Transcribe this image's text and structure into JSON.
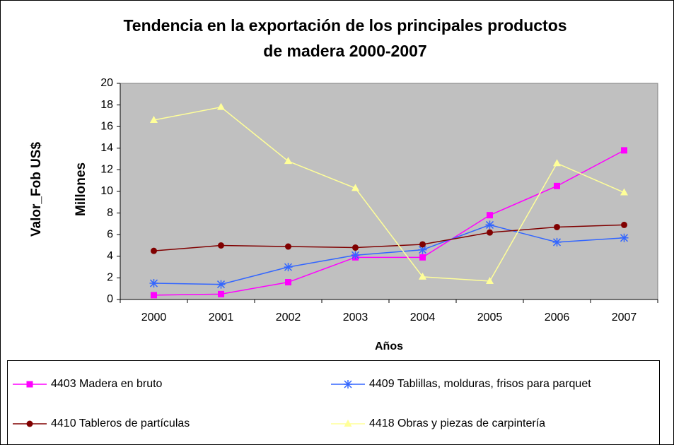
{
  "chart_data": {
    "type": "line",
    "title": [
      "Tendencia en la exportación de los principales productos",
      "de madera 2000-2007"
    ],
    "y_label": "Valor_Fob US$",
    "y_unit_label": "Millones",
    "x_label": "Años",
    "categories": [
      "2000",
      "2001",
      "2002",
      "2003",
      "2004",
      "2005",
      "2006",
      "2007"
    ],
    "series": [
      {
        "name": "4403 Madera en bruto",
        "color": "#ff00ff",
        "marker": "square",
        "values": [
          0.4,
          0.5,
          1.6,
          3.9,
          3.9,
          7.8,
          10.5,
          13.8
        ]
      },
      {
        "name": "4409 Tablillas, molduras, frisos para parquet",
        "color": "#3366ff",
        "marker": "asterisk",
        "values": [
          1.5,
          1.4,
          3.0,
          4.1,
          4.6,
          6.9,
          5.3,
          5.7
        ]
      },
      {
        "name": "4410 Tableros de partículas",
        "color": "#800000",
        "marker": "circle",
        "values": [
          4.5,
          5.0,
          4.9,
          4.8,
          5.1,
          6.2,
          6.7,
          6.9
        ]
      },
      {
        "name": "4418 Obras y piezas de carpintería",
        "color": "#ffff99",
        "marker": "triangle",
        "values": [
          16.6,
          17.8,
          12.8,
          10.3,
          2.1,
          1.7,
          12.6,
          9.9
        ]
      }
    ],
    "ylim": [
      0,
      20
    ],
    "yticks": [
      0,
      2,
      4,
      6,
      8,
      10,
      12,
      14,
      16,
      18,
      20
    ],
    "grid": false,
    "legend": "bottom"
  }
}
